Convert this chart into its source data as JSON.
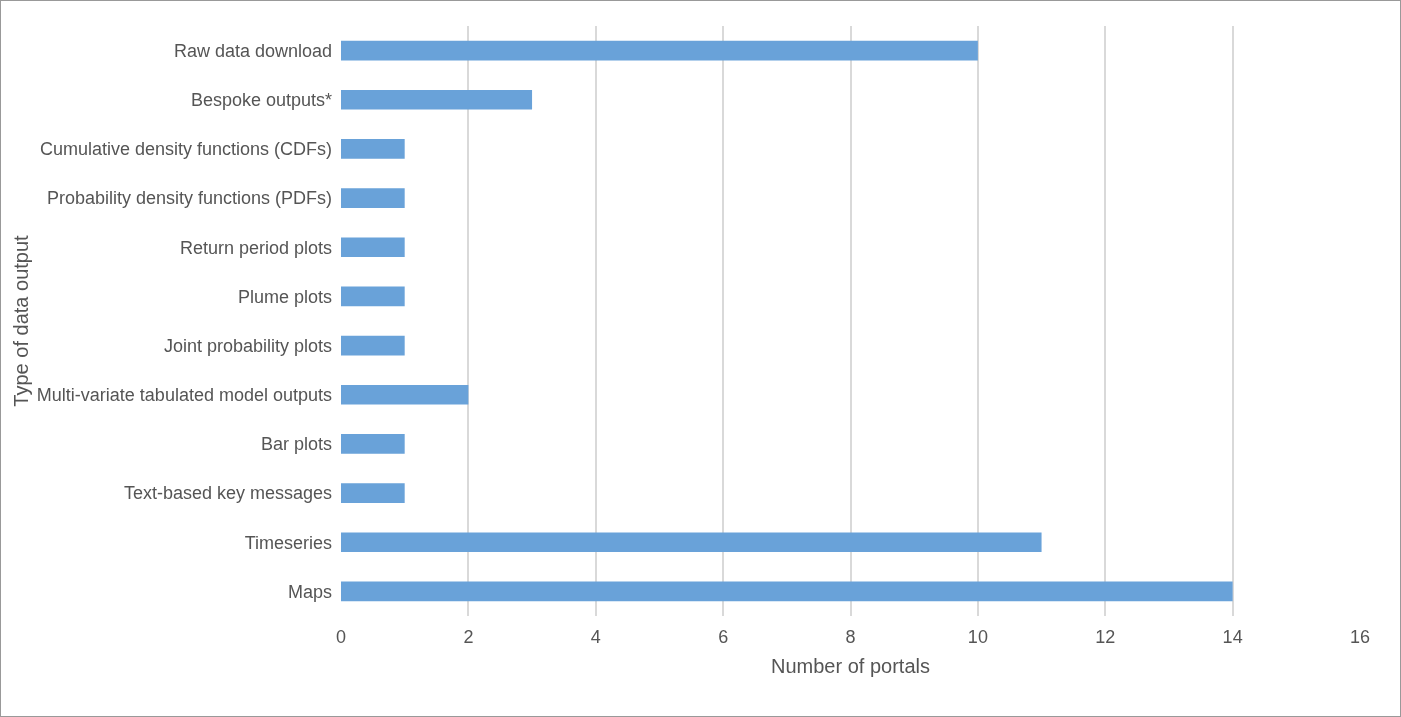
{
  "chart_data": {
    "type": "bar",
    "orientation": "horizontal",
    "xlabel": "Number of portals",
    "ylabel": "Type of data output",
    "categories": [
      "Raw data download",
      "Bespoke outputs*",
      "Cumulative density functions (CDFs)",
      "Probability density functions (PDFs)",
      "Return period plots",
      "Plume plots",
      "Joint probability plots",
      "Multi-variate tabulated model outputs",
      "Bar plots",
      "Text-based key messages",
      "Timeseries",
      "Maps"
    ],
    "values": [
      10,
      3,
      1,
      1,
      1,
      1,
      1,
      2,
      1,
      1,
      11,
      14
    ],
    "color": "#69a2d9",
    "xlim": [
      0,
      16
    ],
    "xticks": [
      0,
      2,
      4,
      6,
      8,
      10,
      12,
      14,
      16
    ],
    "grid": "x"
  }
}
